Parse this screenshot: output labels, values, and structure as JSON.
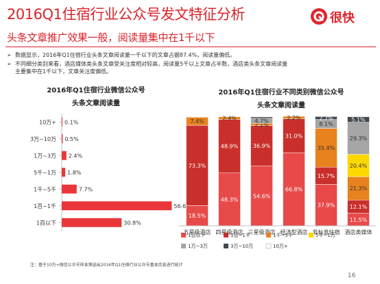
{
  "title": "2016Q1住宿行业公众号发文特征分析",
  "subtitle": "头条文章推广效果一般，阅读量集中在1千以下",
  "logo": {
    "text": "很快",
    "icon": "logo-badge-icon",
    "color": "#e0262d"
  },
  "bullets": [
    {
      "marker": "➢",
      "lines": [
        "数据显示，2016年Q1住宿行业头条文章阅读量一千以下的文章占据87.4%，阅读量偏低。"
      ]
    },
    {
      "marker": "➢",
      "lines": [
        "不同细分类别来看，酒店媒体类头条文章受关注度相对较高，阅读量5千以上文章占半数，酒店类头条文章阅读量",
        "主要集中在1千以下，文章关注度偏低。"
      ]
    }
  ],
  "footnote": "注：基于10万+微信公众号样本筛选出2016年Q1住宿行业公众号基本信息进行统计",
  "page_number": "16",
  "colors": {
    "accent": "#d8232a",
    "bar": "#e8363a",
    "s1": "#e84a4a",
    "s2": "#c9302c",
    "s3": "#e8821e",
    "s4": "#ffd700",
    "s5": "#a5a5a5",
    "s6": "#404850",
    "s7": "#ffffff"
  },
  "chart_data": [
    {
      "type": "bar",
      "orientation": "horizontal",
      "title": "2016年Q1住宿行业微信公众号头条文章阅读量",
      "title_lines": [
        "2016年Q1住宿行业微信公众号",
        "头条文章阅读量"
      ],
      "categories": [
        "10万+",
        "3万~10万",
        "1万~3万",
        "5千~1万",
        "1千~5千",
        "1百~1千",
        "1百以下"
      ],
      "values": [
        0.1,
        0.5,
        2.4,
        1.8,
        7.7,
        56.6,
        30.8
      ],
      "labels": [
        "0.1%",
        "0.5%",
        "2.4%",
        "1.8%",
        "7.7%",
        "56.6%",
        "30.8%"
      ],
      "xlim": [
        0,
        60
      ]
    },
    {
      "type": "bar",
      "stacked": true,
      "title": "2016年Q1住宿行业不同类别微信公众号头条文章阅读量",
      "title_lines": [
        "2016年Q1住宿行业不同类别微信公众号",
        "头条文章阅读量"
      ],
      "categories": [
        "五星级酒店",
        "四星级酒店",
        "三星级酒店",
        "经济型酒店",
        "非标准住宿",
        "酒店类媒体"
      ],
      "ylim": [
        0,
        100
      ],
      "series": [
        {
          "name": "1百以下",
          "values": [
            18.5,
            48.3,
            54.6,
            66.8,
            37.9,
            11.5
          ],
          "labels": [
            "18.5%",
            "48.3%",
            "54.6%",
            "66.8%",
            "37.9%",
            "11.5%"
          ]
        },
        {
          "name": "1百~1千",
          "values": [
            73.3,
            48.9,
            36.9,
            31.0,
            15.7,
            12.1
          ],
          "labels": [
            "73.3%",
            "48.9%",
            "36.9%",
            "31.0%",
            "15.7%",
            "12.1%"
          ]
        },
        {
          "name": "1千~5千",
          "values": [
            7.4,
            2.4,
            2.1,
            2.2,
            35.4,
            21.3
          ],
          "labels": [
            "7.4%",
            "2.4%",
            "2.1%",
            "2.2%",
            "35.4%",
            "21.3%"
          ]
        },
        {
          "name": "5千~1万",
          "values": [
            0,
            0,
            0,
            0,
            0,
            20.4
          ],
          "labels": [
            "",
            "",
            "",
            "",
            "",
            "20.4%"
          ]
        },
        {
          "name": "1万~3万",
          "values": [
            0.4,
            0,
            4.7,
            0,
            8.1,
            29.3
          ],
          "labels": [
            "",
            "",
            "4.7%",
            "",
            "8.1%",
            "29.3%"
          ]
        },
        {
          "name": "3万~10万",
          "values": [
            0,
            0,
            1.2,
            0,
            2.7,
            5.1
          ],
          "labels": [
            "",
            "",
            "",
            "",
            "2.7%",
            "5.1%"
          ]
        },
        {
          "name": "10万+",
          "values": [
            0,
            0,
            0,
            0,
            0,
            0.3
          ],
          "labels": [
            "",
            "",
            "",
            "",
            "",
            ""
          ]
        }
      ],
      "legend": "bottom"
    }
  ]
}
